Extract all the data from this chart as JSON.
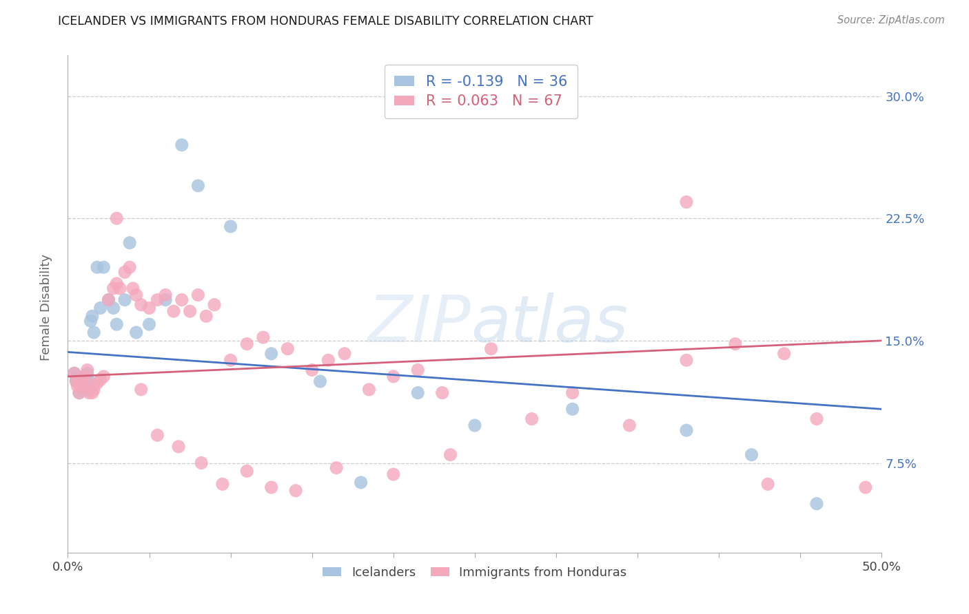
{
  "title": "ICELANDER VS IMMIGRANTS FROM HONDURAS FEMALE DISABILITY CORRELATION CHART",
  "source": "Source: ZipAtlas.com",
  "ylabel": "Female Disability",
  "r1": -0.139,
  "n1": 36,
  "r2": 0.063,
  "n2": 67,
  "color_blue": "#a8c4e0",
  "color_pink": "#f4a8bc",
  "line_color_blue": "#4472c4",
  "line_color_pink": "#d4607a",
  "background_color": "#ffffff",
  "xlim": [
    0.0,
    0.5
  ],
  "ylim": [
    0.02,
    0.325
  ],
  "ytick_vals": [
    0.075,
    0.15,
    0.225,
    0.3
  ],
  "ytick_labels": [
    "7.5%",
    "15.0%",
    "22.5%",
    "30.0%"
  ],
  "xtick_vals": [
    0.0,
    0.05,
    0.1,
    0.15,
    0.2,
    0.25,
    0.3,
    0.35,
    0.4,
    0.45,
    0.5
  ],
  "legend_label1": "Icelanders",
  "legend_label2": "Immigrants from Honduras",
  "blue_line_start_y": 0.143,
  "blue_line_end_y": 0.108,
  "pink_line_start_y": 0.128,
  "pink_line_end_y": 0.15,
  "icelanders_x": [
    0.004,
    0.005,
    0.006,
    0.007,
    0.008,
    0.009,
    0.01,
    0.011,
    0.012,
    0.013,
    0.014,
    0.015,
    0.016,
    0.018,
    0.02,
    0.022,
    0.025,
    0.028,
    0.03,
    0.035,
    0.038,
    0.042,
    0.05,
    0.06,
    0.07,
    0.08,
    0.1,
    0.125,
    0.155,
    0.18,
    0.215,
    0.25,
    0.31,
    0.38,
    0.42,
    0.46
  ],
  "icelanders_y": [
    0.13,
    0.126,
    0.128,
    0.118,
    0.122,
    0.125,
    0.128,
    0.12,
    0.13,
    0.125,
    0.162,
    0.165,
    0.155,
    0.195,
    0.17,
    0.195,
    0.175,
    0.17,
    0.16,
    0.175,
    0.21,
    0.155,
    0.16,
    0.175,
    0.27,
    0.245,
    0.22,
    0.142,
    0.125,
    0.063,
    0.118,
    0.098,
    0.108,
    0.095,
    0.08,
    0.05
  ],
  "honduras_x": [
    0.004,
    0.005,
    0.006,
    0.007,
    0.008,
    0.009,
    0.01,
    0.011,
    0.012,
    0.013,
    0.015,
    0.016,
    0.018,
    0.02,
    0.022,
    0.025,
    0.028,
    0.03,
    0.032,
    0.035,
    0.038,
    0.04,
    0.042,
    0.045,
    0.05,
    0.055,
    0.06,
    0.065,
    0.07,
    0.075,
    0.08,
    0.085,
    0.09,
    0.1,
    0.11,
    0.12,
    0.135,
    0.15,
    0.16,
    0.17,
    0.185,
    0.2,
    0.215,
    0.23,
    0.26,
    0.285,
    0.31,
    0.345,
    0.38,
    0.41,
    0.44,
    0.46,
    0.49,
    0.03,
    0.045,
    0.055,
    0.068,
    0.082,
    0.095,
    0.11,
    0.125,
    0.14,
    0.165,
    0.2,
    0.235,
    0.38,
    0.43
  ],
  "honduras_y": [
    0.13,
    0.125,
    0.122,
    0.118,
    0.125,
    0.122,
    0.128,
    0.125,
    0.132,
    0.118,
    0.118,
    0.12,
    0.124,
    0.126,
    0.128,
    0.175,
    0.182,
    0.185,
    0.182,
    0.192,
    0.195,
    0.182,
    0.178,
    0.172,
    0.17,
    0.175,
    0.178,
    0.168,
    0.175,
    0.168,
    0.178,
    0.165,
    0.172,
    0.138,
    0.148,
    0.152,
    0.145,
    0.132,
    0.138,
    0.142,
    0.12,
    0.128,
    0.132,
    0.118,
    0.145,
    0.102,
    0.118,
    0.098,
    0.138,
    0.148,
    0.142,
    0.102,
    0.06,
    0.225,
    0.12,
    0.092,
    0.085,
    0.075,
    0.062,
    0.07,
    0.06,
    0.058,
    0.072,
    0.068,
    0.08,
    0.235,
    0.062
  ]
}
